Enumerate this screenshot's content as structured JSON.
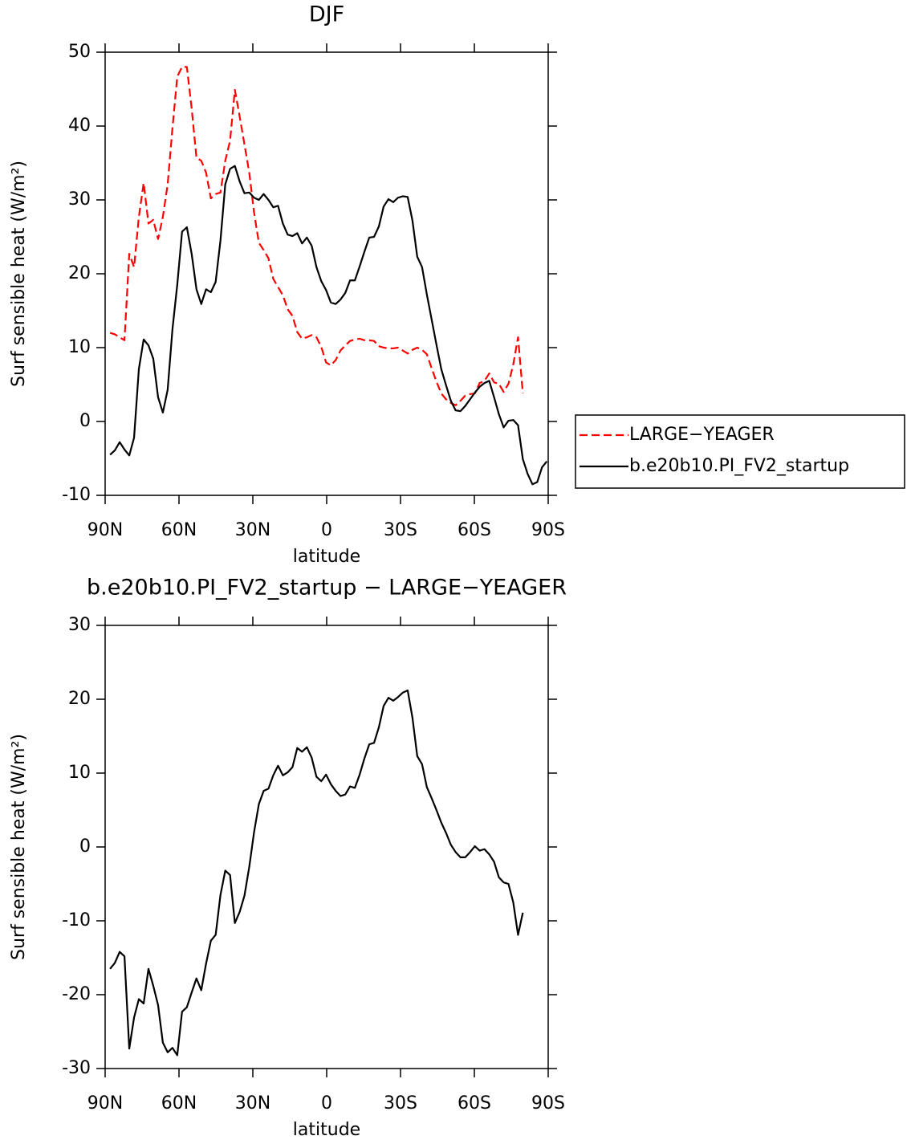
{
  "chart_data": [
    {
      "type": "line",
      "title": "DJF",
      "xlabel": "latitude",
      "ylabel": "Surf sensible heat (W/m²)",
      "xlim": [
        90,
        -90
      ],
      "xticks": [
        {
          "value": 90,
          "label": "90N"
        },
        {
          "value": 60,
          "label": "60N"
        },
        {
          "value": 30,
          "label": "30N"
        },
        0,
        {
          "value": -30,
          "label": "30S"
        },
        {
          "value": -60,
          "label": "60S"
        },
        {
          "value": -90,
          "label": "90S"
        }
      ],
      "ylim": [
        -10,
        50
      ],
      "yticks": [
        -10,
        0,
        10,
        20,
        30,
        40,
        50
      ],
      "legend": "right",
      "x": [
        88,
        86.05,
        84.1,
        82.15,
        80.2,
        78.25,
        76.3,
        74.35,
        72.4,
        70.45,
        68.5,
        66.55,
        64.6,
        62.65,
        60.7,
        58.75,
        56.8,
        54.85,
        52.9,
        50.95,
        49,
        47.05,
        45.1,
        43.15,
        41.2,
        39.25,
        37.3,
        35.35,
        33.4,
        31.45,
        29.5,
        27.55,
        25.6,
        23.65,
        21.7,
        19.75,
        17.8,
        15.85,
        13.9,
        11.95,
        10,
        8.05,
        6.1,
        4.15,
        2.2,
        0.25,
        -1.7,
        -3.65,
        -5.6,
        -7.55,
        -9.5,
        -11.45,
        -13.4,
        -15.35,
        -17.3,
        -19.25,
        -21.2,
        -23.15,
        -25.1,
        -27.05,
        -29,
        -30.95,
        -32.9,
        -34.85,
        -36.8,
        -38.75,
        -40.7,
        -42.65,
        -44.6,
        -46.55,
        -48.5,
        -50.45,
        -52.4,
        -54.35,
        -56.3,
        -58.25,
        -60.2,
        -62.15,
        -64.1,
        -66.05,
        -68,
        -69.95,
        -71.9,
        -73.85,
        -75.8,
        -77.75,
        -79.7,
        -81.65,
        -83.6,
        -85.55,
        -87.5,
        -89.45
      ],
      "series": [
        {
          "name": "LARGE−YEAGER",
          "color": "#ff0000",
          "dashed": true,
          "values": [
            12.0,
            11.8,
            11.4,
            11.0,
            22.7,
            20.9,
            27.7,
            32.3,
            26.8,
            27.3,
            24.7,
            27.7,
            32.1,
            39.7,
            46.7,
            48.0,
            48.0,
            42.4,
            35.7,
            35.3,
            33.7,
            30.2,
            30.8,
            31.0,
            35.3,
            38.0,
            44.9,
            41.3,
            37.5,
            33.7,
            28.3,
            24.2,
            23.2,
            22.1,
            19.3,
            18.2,
            17.1,
            15.2,
            14.3,
            12.1,
            11.2,
            11.4,
            11.7,
            11.4,
            10.1,
            8.0,
            7.6,
            8.3,
            9.6,
            10.3,
            10.9,
            11.1,
            11.2,
            11.0,
            11.0,
            10.9,
            10.2,
            10.0,
            9.9,
            9.9,
            10.0,
            9.6,
            9.2,
            9.7,
            10.0,
            9.7,
            9.1,
            7.2,
            5.4,
            3.8,
            3.0,
            2.5,
            2.2,
            2.8,
            3.5,
            3.7,
            3.8,
            5.2,
            5.5,
            6.5,
            5.3,
            5.1,
            4.0,
            5.1,
            7.7,
            11.4,
            3.8,
            null,
            null,
            null,
            null,
            null
          ]
        },
        {
          "name": "b.e20b10.PI_FV2_startup",
          "color": "#000000",
          "values": [
            -4.5,
            -3.9,
            -2.8,
            -3.8,
            -4.6,
            -2.2,
            7.1,
            11.1,
            10.3,
            8.5,
            3.3,
            1.2,
            4.3,
            12.5,
            18.5,
            25.7,
            26.3,
            22.7,
            17.9,
            15.9,
            17.9,
            17.5,
            18.9,
            24.5,
            32.1,
            34.2,
            34.6,
            32.5,
            30.9,
            31.0,
            30.3,
            30.0,
            30.8,
            30.0,
            29.0,
            29.2,
            26.8,
            25.3,
            25.1,
            25.5,
            24.1,
            24.9,
            23.8,
            20.9,
            19.0,
            17.8,
            16.1,
            15.9,
            16.5,
            17.4,
            19.1,
            19.1,
            21.0,
            23.0,
            24.9,
            25.0,
            26.4,
            29.1,
            30.1,
            29.7,
            30.3,
            30.5,
            30.4,
            27.2,
            22.3,
            20.9,
            17.2,
            13.8,
            10.4,
            7.1,
            4.9,
            2.8,
            1.5,
            1.4,
            2.1,
            3.0,
            3.9,
            4.7,
            5.2,
            5.5,
            3.3,
            1.0,
            -0.8,
            0.1,
            0.2,
            -0.5,
            -5.1,
            -7.1,
            -8.5,
            -8.2,
            -6.2,
            -5.4
          ]
        }
      ]
    },
    {
      "type": "line",
      "title": "b.e20b10.PI_FV2_startup − LARGE−YEAGER",
      "xlabel": "latitude",
      "ylabel": "Surf sensible heat (W/m²)",
      "xlim": [
        90,
        -90
      ],
      "xticks": [
        {
          "value": 90,
          "label": "90N"
        },
        {
          "value": 60,
          "label": "60N"
        },
        {
          "value": 30,
          "label": "30N"
        },
        0,
        {
          "value": -30,
          "label": "30S"
        },
        {
          "value": -60,
          "label": "60S"
        },
        {
          "value": -90,
          "label": "90S"
        }
      ],
      "ylim": [
        -30,
        30
      ],
      "yticks": [
        -30,
        -20,
        -10,
        0,
        10,
        20,
        30
      ],
      "x": [
        88,
        86.05,
        84.1,
        82.15,
        80.2,
        78.25,
        76.3,
        74.35,
        72.4,
        70.45,
        68.5,
        66.55,
        64.6,
        62.65,
        60.7,
        58.75,
        56.8,
        54.85,
        52.9,
        50.95,
        49,
        47.05,
        45.1,
        43.15,
        41.2,
        39.25,
        37.3,
        35.35,
        33.4,
        31.45,
        29.5,
        27.55,
        25.6,
        23.65,
        21.7,
        19.75,
        17.8,
        15.85,
        13.9,
        11.95,
        10,
        8.05,
        6.1,
        4.15,
        2.2,
        0.25,
        -1.7,
        -3.65,
        -5.6,
        -7.55,
        -9.5,
        -11.45,
        -13.4,
        -15.35,
        -17.3,
        -19.25,
        -21.2,
        -23.15,
        -25.1,
        -27.05,
        -29,
        -30.95,
        -32.9,
        -34.85,
        -36.8,
        -38.75,
        -40.7,
        -42.65,
        -44.6,
        -46.55,
        -48.5,
        -50.45,
        -52.4,
        -54.35,
        -56.3,
        -58.25,
        -60.2,
        -62.15,
        -64.1,
        -66.05,
        -68,
        -69.95,
        -71.9,
        -73.85,
        -75.8,
        -77.75,
        -79.7,
        -81.65,
        -83.6,
        -85.55,
        -87.5,
        -89.45
      ],
      "series": [
        {
          "color": "#000000",
          "values": [
            -16.5,
            -15.7,
            -14.2,
            -14.8,
            -27.3,
            -23.1,
            -20.6,
            -21.2,
            -16.5,
            -18.8,
            -21.4,
            -26.5,
            -27.8,
            -27.2,
            -28.2,
            -22.3,
            -21.7,
            -19.7,
            -17.8,
            -19.4,
            -15.8,
            -12.7,
            -11.9,
            -6.5,
            -3.2,
            -3.8,
            -10.3,
            -8.8,
            -6.6,
            -2.7,
            2.0,
            5.8,
            7.6,
            7.9,
            9.7,
            11.0,
            9.7,
            10.1,
            10.8,
            13.4,
            12.9,
            13.5,
            12.1,
            9.5,
            8.9,
            9.8,
            8.5,
            7.6,
            6.9,
            7.1,
            8.2,
            8.0,
            9.8,
            12.0,
            13.9,
            14.1,
            16.2,
            19.1,
            20.2,
            19.8,
            20.3,
            20.9,
            21.2,
            17.5,
            12.3,
            11.2,
            8.1,
            6.6,
            5.0,
            3.3,
            1.9,
            0.3,
            -0.7,
            -1.4,
            -1.4,
            -0.7,
            0.1,
            -0.5,
            -0.3,
            -1.0,
            -2.0,
            -4.1,
            -4.8,
            -5.0,
            -7.5,
            -11.9,
            -8.9,
            null,
            null,
            null,
            null,
            null
          ]
        }
      ]
    }
  ]
}
